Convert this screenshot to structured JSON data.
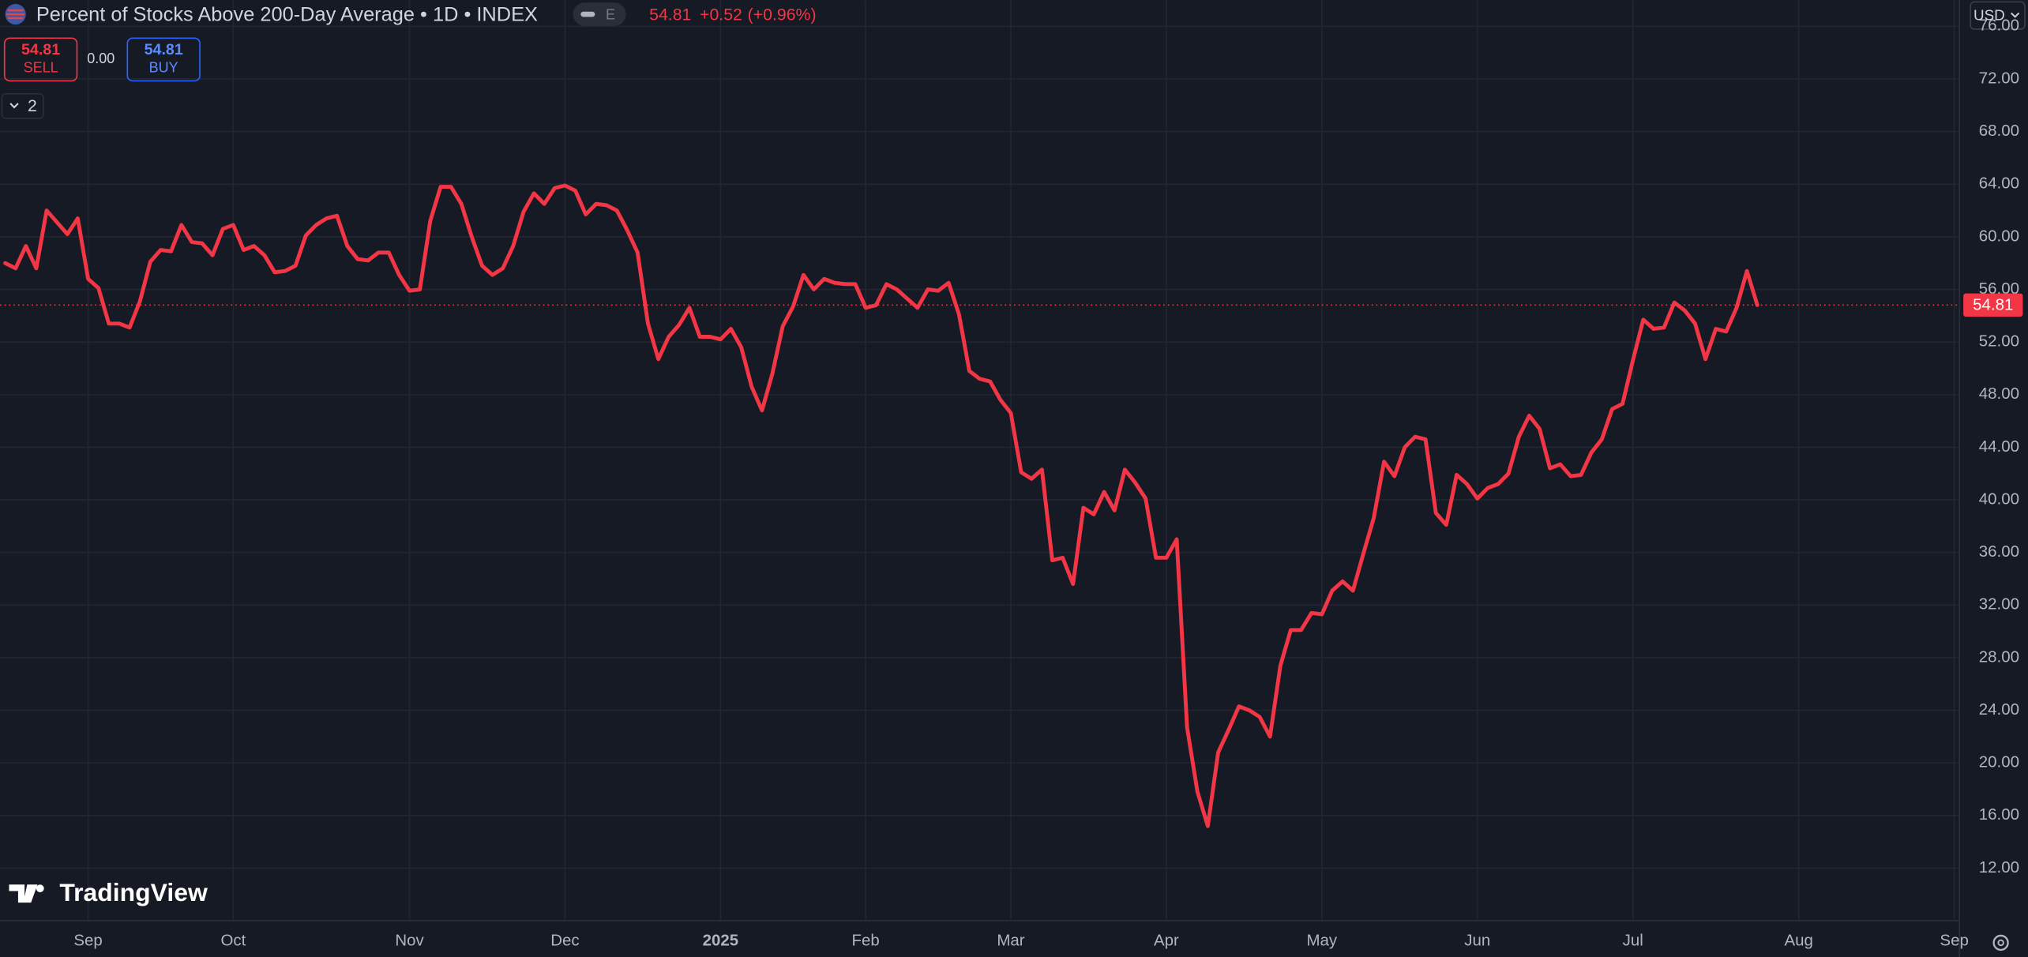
{
  "chart_data": {
    "type": "line",
    "title": "Percent of Stocks Above 200-Day Average • 1D • INDEX",
    "categories": [
      null,
      null,
      null,
      null,
      null,
      null,
      null,
      null,
      "Sep",
      null,
      null,
      null,
      null,
      null,
      null,
      null,
      null,
      null,
      null,
      null,
      null,
      null,
      "Oct",
      null,
      null,
      null,
      null,
      null,
      null,
      null,
      null,
      null,
      null,
      null,
      null,
      null,
      null,
      null,
      null,
      "Nov",
      null,
      null,
      null,
      null,
      null,
      null,
      null,
      null,
      null,
      null,
      null,
      null,
      null,
      null,
      "Dec",
      null,
      null,
      null,
      null,
      null,
      null,
      null,
      null,
      null,
      null,
      null,
      null,
      null,
      null,
      "2025",
      null,
      null,
      null,
      null,
      null,
      null,
      null,
      null,
      null,
      null,
      null,
      null,
      null,
      "Feb",
      null,
      null,
      null,
      null,
      null,
      null,
      null,
      null,
      null,
      null,
      null,
      null,
      null,
      "Mar",
      null,
      null,
      null,
      null,
      null,
      null,
      null,
      null,
      null,
      null,
      null,
      null,
      null,
      null,
      "Apr",
      null,
      null,
      null,
      null,
      null,
      null,
      null,
      null,
      null,
      null,
      null,
      null,
      null,
      null,
      "May",
      null,
      null,
      null,
      null,
      null,
      null,
      null,
      null,
      null,
      null,
      null,
      null,
      null,
      null,
      "Jun",
      null,
      null,
      null,
      null,
      null,
      null,
      null,
      null,
      null,
      null,
      null,
      null,
      null,
      null,
      "Jul",
      null,
      null,
      null,
      null,
      null,
      null,
      null,
      null,
      null,
      null,
      null,
      null,
      null,
      null,
      null,
      "Aug",
      null,
      null,
      null,
      null,
      null,
      null,
      null,
      null,
      null,
      null,
      null,
      null,
      null,
      null,
      "Sep"
    ],
    "values": [
      58.0,
      57.6,
      59.3,
      57.6,
      62.0,
      61.1,
      60.2,
      61.4,
      56.8,
      56.1,
      53.4,
      53.4,
      53.1,
      55.1,
      58.1,
      59.0,
      58.9,
      60.9,
      59.6,
      59.5,
      58.6,
      60.6,
      60.9,
      59.0,
      59.3,
      58.6,
      57.3,
      57.4,
      57.8,
      60.1,
      60.9,
      61.4,
      61.6,
      59.3,
      58.3,
      58.2,
      58.8,
      58.8,
      57.1,
      55.9,
      56.0,
      61.2,
      63.8,
      63.8,
      62.5,
      60.0,
      57.8,
      57.1,
      57.6,
      59.3,
      61.9,
      63.3,
      62.5,
      63.7,
      63.9,
      63.5,
      61.7,
      62.5,
      62.4,
      62.0,
      60.5,
      58.8,
      53.4,
      50.7,
      52.4,
      53.3,
      54.6,
      52.4,
      52.4,
      52.2,
      53.0,
      51.6,
      48.6,
      46.8,
      49.6,
      53.2,
      54.7,
      57.1,
      56.0,
      56.8,
      56.5,
      56.4,
      56.4,
      54.6,
      54.8,
      56.4,
      56.0,
      55.3,
      54.6,
      56.0,
      55.9,
      56.5,
      54.1,
      49.8,
      49.2,
      49.0,
      47.6,
      46.6,
      42.1,
      41.6,
      42.3,
      35.4,
      35.6,
      33.6,
      39.4,
      38.9,
      40.6,
      39.2,
      42.3,
      41.3,
      40.1,
      35.6,
      35.6,
      37.0,
      22.7,
      17.8,
      15.2,
      20.8,
      22.5,
      24.3,
      24.0,
      23.5,
      22.0,
      27.4,
      30.1,
      30.1,
      31.4,
      31.3,
      33.1,
      33.8,
      33.1,
      35.9,
      38.6,
      42.9,
      41.8,
      44.0,
      44.8,
      44.6,
      39.0,
      38.1,
      41.9,
      41.2,
      40.1,
      40.9,
      41.2,
      42.0,
      44.8,
      46.4,
      45.4,
      42.4,
      42.7,
      41.8,
      41.9,
      43.6,
      44.6,
      46.9,
      47.3,
      50.6,
      53.7,
      53.0,
      53.1,
      55.0,
      54.4,
      53.4,
      50.7,
      53.0,
      52.8,
      54.6,
      57.4,
      54.81,
      null,
      null,
      null,
      null,
      null,
      null,
      null,
      null,
      null,
      null,
      null,
      null,
      null,
      null,
      null,
      null,
      null,
      null,
      null
    ],
    "color": "#f23645",
    "ylim": [
      8,
      78
    ],
    "yticks": [
      {
        "value": 12,
        "label": "12.00"
      },
      {
        "value": 16,
        "label": "16.00"
      },
      {
        "value": 20,
        "label": "20.00"
      },
      {
        "value": 24,
        "label": "24.00"
      },
      {
        "value": 28,
        "label": "28.00"
      },
      {
        "value": 32,
        "label": "32.00"
      },
      {
        "value": 36,
        "label": "36.00"
      },
      {
        "value": 40,
        "label": "40.00"
      },
      {
        "value": 44,
        "label": "44.00"
      },
      {
        "value": 48,
        "label": "48.00"
      },
      {
        "value": 52,
        "label": "52.00"
      },
      {
        "value": 56,
        "label": "56.00"
      },
      {
        "value": 60,
        "label": "60.00"
      },
      {
        "value": 64,
        "label": "64.00"
      },
      {
        "value": 68,
        "label": "68.00"
      },
      {
        "value": 72,
        "label": "72.00"
      },
      {
        "value": 76,
        "label": "76.00"
      }
    ],
    "grid": true
  },
  "ui": {
    "exchange_badge": "E",
    "last": "54.81",
    "change": "+0.52",
    "change_pct": "(+0.96%)",
    "sell_price": "54.81",
    "sell": "SELL",
    "spread": "0.00",
    "buy_price": "54.81",
    "buy": "BUY",
    "indicator_count": "2",
    "currency": "USD",
    "brand": "TradingView"
  }
}
